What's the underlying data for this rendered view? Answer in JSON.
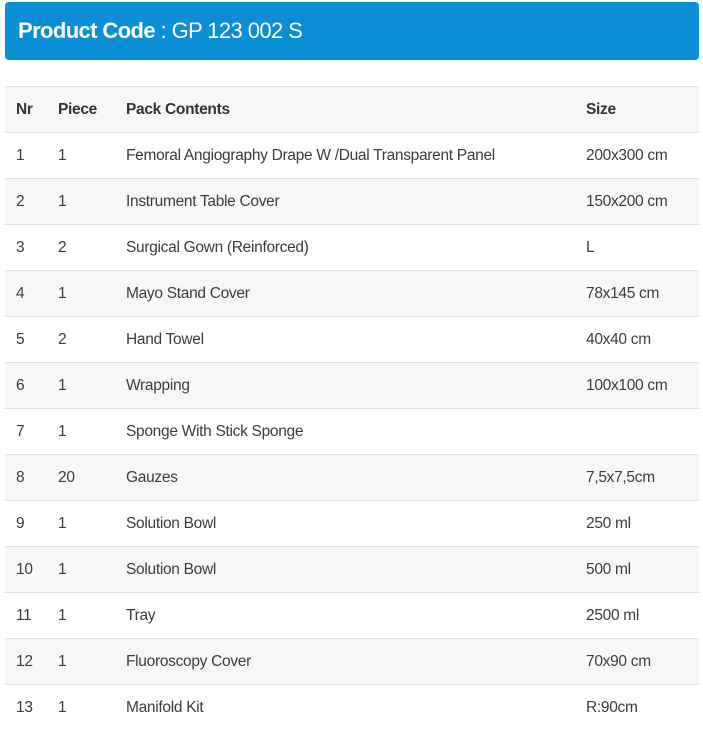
{
  "header": {
    "label": "Product Code",
    "value": ": GP 123 002 S"
  },
  "table": {
    "columns": [
      "Nr",
      "Piece",
      "Pack Contents",
      "Size"
    ],
    "rows": [
      [
        "1",
        "1",
        "Femoral Angiography Drape W /Dual Transparent Panel",
        "200x300 cm"
      ],
      [
        "2",
        "1",
        "Instrument Table Cover",
        "150x200 cm"
      ],
      [
        "3",
        "2",
        "Surgical Gown (Reinforced)",
        "L"
      ],
      [
        "4",
        "1",
        "Mayo Stand Cover",
        "78x145 cm"
      ],
      [
        "5",
        "2",
        "Hand Towel",
        "40x40 cm"
      ],
      [
        "6",
        "1",
        "Wrapping",
        "100x100 cm"
      ],
      [
        "7",
        "1",
        "Sponge With Stick Sponge",
        null
      ],
      [
        "8",
        "20",
        "Gauzes",
        "7,5x7,5cm"
      ],
      [
        "9",
        "1",
        "Solution Bowl",
        "250 ml"
      ],
      [
        "10",
        "1",
        "Solution Bowl",
        "500 ml"
      ],
      [
        "11",
        "1",
        "Tray",
        "2500 ml"
      ],
      [
        "12",
        "1",
        "Fluoroscopy Cover",
        "70x90 cm"
      ],
      [
        "13",
        "1",
        "Manifold Kit",
        "R:90cm"
      ]
    ]
  }
}
